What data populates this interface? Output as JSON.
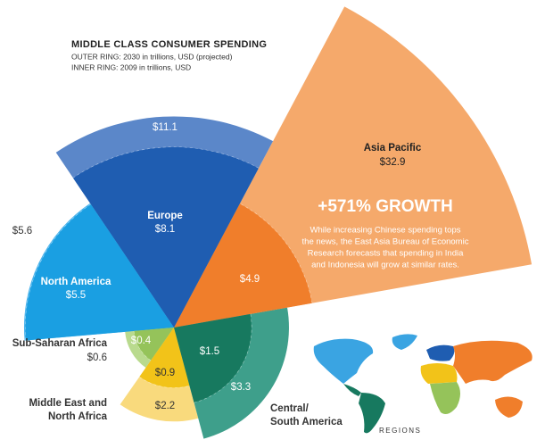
{
  "chart_data": {
    "type": "polar-area",
    "title": "MIDDLE CLASS CONSUMER SPENDING",
    "subtitle": [
      "OUTER RING: 2030 in trillions, USD (projected)",
      "INNER RING: 2009 in trillions, USD"
    ],
    "series": [
      {
        "name": [
          "Asia Pacific"
        ],
        "values": [
          32.9,
          4.9
        ],
        "value_labels": [
          "$32.9",
          "$4.9"
        ],
        "colors": [
          "#f5a96b",
          "#f07e2b"
        ]
      },
      {
        "name": [
          "Europe"
        ],
        "values": [
          11.1,
          8.1
        ],
        "value_labels": [
          "$11.1",
          "$8.1"
        ],
        "colors": [
          "#5b87c9",
          "#1f5db1"
        ]
      },
      {
        "name": [
          "North America"
        ],
        "values": [
          5.6,
          5.5
        ],
        "value_labels": [
          "$5.6",
          "$5.5"
        ],
        "colors": [
          "#49b3ec",
          "#1a9fe2"
        ]
      },
      {
        "name": [
          "Sub-Saharan Africa"
        ],
        "values": [
          0.6,
          0.4
        ],
        "value_labels": [
          "$0.6",
          "$0.4"
        ],
        "colors": [
          "#b9da8e",
          "#95c35a"
        ]
      },
      {
        "name": [
          "Middle East and",
          "North Africa"
        ],
        "values": [
          2.2,
          0.9
        ],
        "value_labels": [
          "$2.2",
          "$0.9"
        ],
        "colors": [
          "#f9da7d",
          "#f2c319"
        ]
      },
      {
        "name": [
          "Central/",
          "South America"
        ],
        "values": [
          3.3,
          1.5
        ],
        "value_labels": [
          "$3.3",
          "$1.5"
        ],
        "colors": [
          "#3e9f8b",
          "#17795f"
        ]
      }
    ],
    "annotation": {
      "headline": "+571% GROWTH",
      "lines": [
        "While increasing Chinese spending tops",
        "the news, the East Asia Bureau of Economic",
        "Research forecasts that spending in India",
        "and Indonesia will grow at similar rates."
      ]
    },
    "map_label": "REGIONS"
  }
}
